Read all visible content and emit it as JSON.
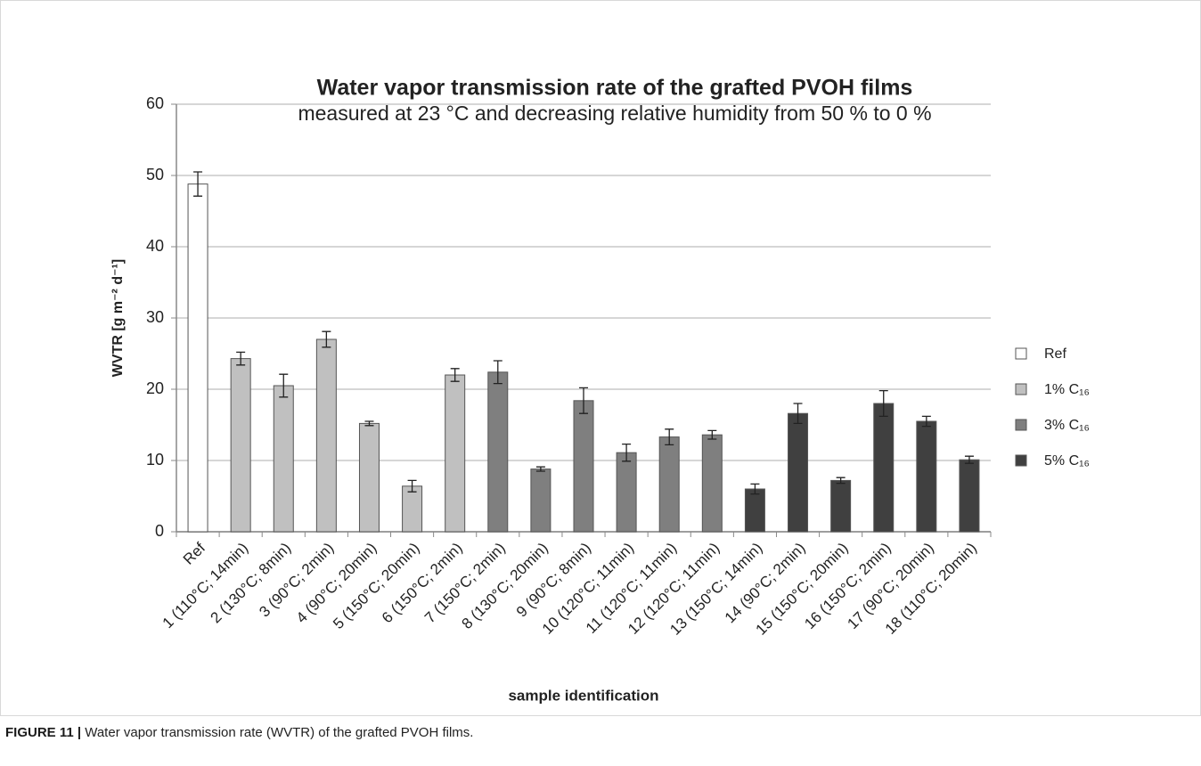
{
  "chart_data": {
    "type": "bar",
    "title": "Water vapor transmission rate of the grafted PVOH films",
    "subtitle": "measured at 23 °C and decreasing relative humidity from 50 % to 0 %",
    "ylabel": "WVTR [g m⁻² d⁻¹]",
    "xlabel": "sample identification",
    "categories": [
      "Ref",
      "1 (110°C; 14min)",
      "2 (130°C; 8min)",
      "3 (90°C; 2min)",
      "4 (90°C; 20min)",
      "5 (150°C; 20min)",
      "6 (150°C; 2min)",
      "7 (150°C; 2min)",
      "8 (130°C; 20min)",
      "9 (90°C; 8min)",
      "10 (120°C; 11min)",
      "11 (120°C; 11min)",
      "12 (120°C; 11min)",
      "13 (150°C; 14min)",
      "14 (90°C; 2min)",
      "15 (150°C; 20min)",
      "16 (150°C; 2min)",
      "17 (90°C; 20min)",
      "18 (110°C; 20min)"
    ],
    "series": [
      {
        "name": "Ref",
        "color": "#ffffff",
        "values": [
          48.8,
          null,
          null,
          null,
          null,
          null,
          null,
          null,
          null,
          null,
          null,
          null,
          null,
          null,
          null,
          null,
          null,
          null,
          null
        ],
        "errors": [
          1.7,
          null,
          null,
          null,
          null,
          null,
          null,
          null,
          null,
          null,
          null,
          null,
          null,
          null,
          null,
          null,
          null,
          null,
          null
        ]
      },
      {
        "name": "1% C₁₆",
        "color": "#c0c0c0",
        "values": [
          null,
          24.3,
          20.5,
          27.0,
          15.2,
          6.4,
          22.0,
          null,
          null,
          null,
          null,
          null,
          null,
          null,
          null,
          null,
          null,
          null,
          null
        ],
        "errors": [
          null,
          0.9,
          1.6,
          1.1,
          0.3,
          0.8,
          0.9,
          null,
          null,
          null,
          null,
          null,
          null,
          null,
          null,
          null,
          null,
          null,
          null
        ]
      },
      {
        "name": "3% C₁₆",
        "color": "#7f7f7f",
        "values": [
          null,
          null,
          null,
          null,
          null,
          null,
          null,
          22.4,
          8.8,
          18.4,
          11.1,
          13.3,
          13.6,
          null,
          null,
          null,
          null,
          null,
          null
        ],
        "errors": [
          null,
          null,
          null,
          null,
          null,
          null,
          null,
          1.6,
          0.3,
          1.8,
          1.2,
          1.1,
          0.6,
          null,
          null,
          null,
          null,
          null,
          null
        ]
      },
      {
        "name": "5% C₁₆",
        "color": "#404040",
        "values": [
          null,
          null,
          null,
          null,
          null,
          null,
          null,
          null,
          null,
          null,
          null,
          null,
          null,
          6.0,
          16.6,
          7.2,
          18.0,
          15.5,
          10.1
        ],
        "errors": [
          null,
          null,
          null,
          null,
          null,
          null,
          null,
          null,
          null,
          null,
          null,
          null,
          null,
          0.7,
          1.4,
          0.4,
          1.8,
          0.7,
          0.5
        ]
      }
    ],
    "ylim": [
      0,
      60
    ],
    "yticks": [
      0,
      10,
      20,
      30,
      40,
      50,
      60
    ],
    "grid": true,
    "legend": "right"
  },
  "caption": {
    "label": "FIGURE 11 |",
    "text": "Water vapor transmission rate (WVTR) of the grafted PVOH films."
  }
}
